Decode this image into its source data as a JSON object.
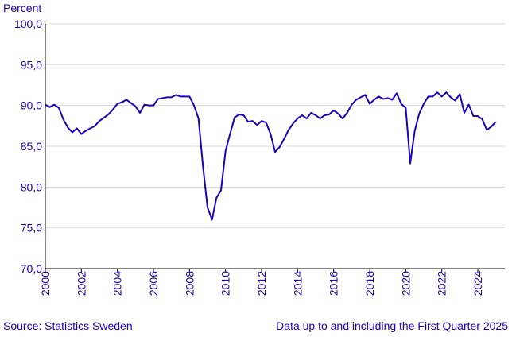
{
  "chart_data": {
    "type": "line",
    "ylabel": "Percent",
    "ylim": [
      70,
      100
    ],
    "y_ticks": [
      "70,0",
      "75,0",
      "80,0",
      "85,0",
      "90,0",
      "95,0",
      "100,0"
    ],
    "y_tick_values": [
      70,
      75,
      80,
      85,
      90,
      95,
      100
    ],
    "x_ticks": [
      "2000",
      "2002",
      "2004",
      "2006",
      "2008",
      "2010",
      "2012",
      "2014",
      "2016",
      "2018",
      "2020",
      "2022",
      "2024"
    ],
    "x_tick_values": [
      2000,
      2002,
      2004,
      2006,
      2008,
      2010,
      2012,
      2014,
      2016,
      2018,
      2020,
      2022,
      2024
    ],
    "xlim": [
      2000,
      2025.5
    ],
    "grid": true,
    "series": [
      {
        "color": "#1e00be",
        "x": [
          2000.0,
          2000.25,
          2000.5,
          2000.75,
          2001.0,
          2001.25,
          2001.5,
          2001.75,
          2002.0,
          2002.25,
          2002.5,
          2002.75,
          2003.0,
          2003.25,
          2003.5,
          2003.75,
          2004.0,
          2004.25,
          2004.5,
          2004.75,
          2005.0,
          2005.25,
          2005.5,
          2005.75,
          2006.0,
          2006.25,
          2006.5,
          2006.75,
          2007.0,
          2007.25,
          2007.5,
          2007.75,
          2008.0,
          2008.25,
          2008.5,
          2008.75,
          2009.0,
          2009.25,
          2009.5,
          2009.75,
          2010.0,
          2010.25,
          2010.5,
          2010.75,
          2011.0,
          2011.25,
          2011.5,
          2011.75,
          2012.0,
          2012.25,
          2012.5,
          2012.75,
          2013.0,
          2013.25,
          2013.5,
          2013.75,
          2014.0,
          2014.25,
          2014.5,
          2014.75,
          2015.0,
          2015.25,
          2015.5,
          2015.75,
          2016.0,
          2016.25,
          2016.5,
          2016.75,
          2017.0,
          2017.25,
          2017.5,
          2017.75,
          2018.0,
          2018.25,
          2018.5,
          2018.75,
          2019.0,
          2019.25,
          2019.5,
          2019.75,
          2020.0,
          2020.25,
          2020.5,
          2020.75,
          2021.0,
          2021.25,
          2021.5,
          2021.75,
          2022.0,
          2022.25,
          2022.5,
          2022.75,
          2023.0,
          2023.25,
          2023.5,
          2023.75,
          2024.0,
          2024.25,
          2024.5,
          2024.75,
          2025.0
        ],
        "values": [
          90.1,
          89.8,
          90.1,
          89.7,
          88.3,
          87.3,
          86.7,
          87.2,
          86.5,
          86.9,
          87.2,
          87.5,
          88.1,
          88.5,
          88.9,
          89.5,
          90.2,
          90.4,
          90.7,
          90.3,
          89.9,
          89.1,
          90.1,
          90.0,
          90.0,
          90.8,
          90.9,
          91.0,
          91.0,
          91.3,
          91.1,
          91.1,
          91.1,
          90.0,
          88.4,
          82.5,
          77.5,
          76.0,
          78.7,
          79.6,
          84.4,
          86.5,
          88.5,
          88.9,
          88.8,
          88.0,
          88.1,
          87.6,
          88.1,
          87.9,
          86.5,
          84.3,
          84.9,
          85.9,
          87.0,
          87.8,
          88.4,
          88.8,
          88.4,
          89.1,
          88.8,
          88.4,
          88.8,
          88.9,
          89.4,
          89.0,
          88.4,
          89.1,
          90.1,
          90.7,
          91.0,
          91.3,
          90.2,
          90.7,
          91.1,
          90.8,
          90.9,
          90.7,
          91.5,
          90.2,
          89.7,
          82.9,
          86.9,
          89.0,
          90.2,
          91.1,
          91.1,
          91.6,
          91.1,
          91.6,
          91.0,
          90.6,
          91.4,
          89.1,
          90.1,
          88.7,
          88.7,
          88.3,
          87.0,
          87.4,
          88.0
        ]
      }
    ]
  },
  "footer": {
    "source": "Source: Statistics Sweden",
    "note": "Data up to and including the First Quarter 2025"
  },
  "colors": {
    "axis_text": "#1e00be",
    "line": "#1e00be",
    "grid": "#d9d9d9",
    "axis": "#000000"
  }
}
